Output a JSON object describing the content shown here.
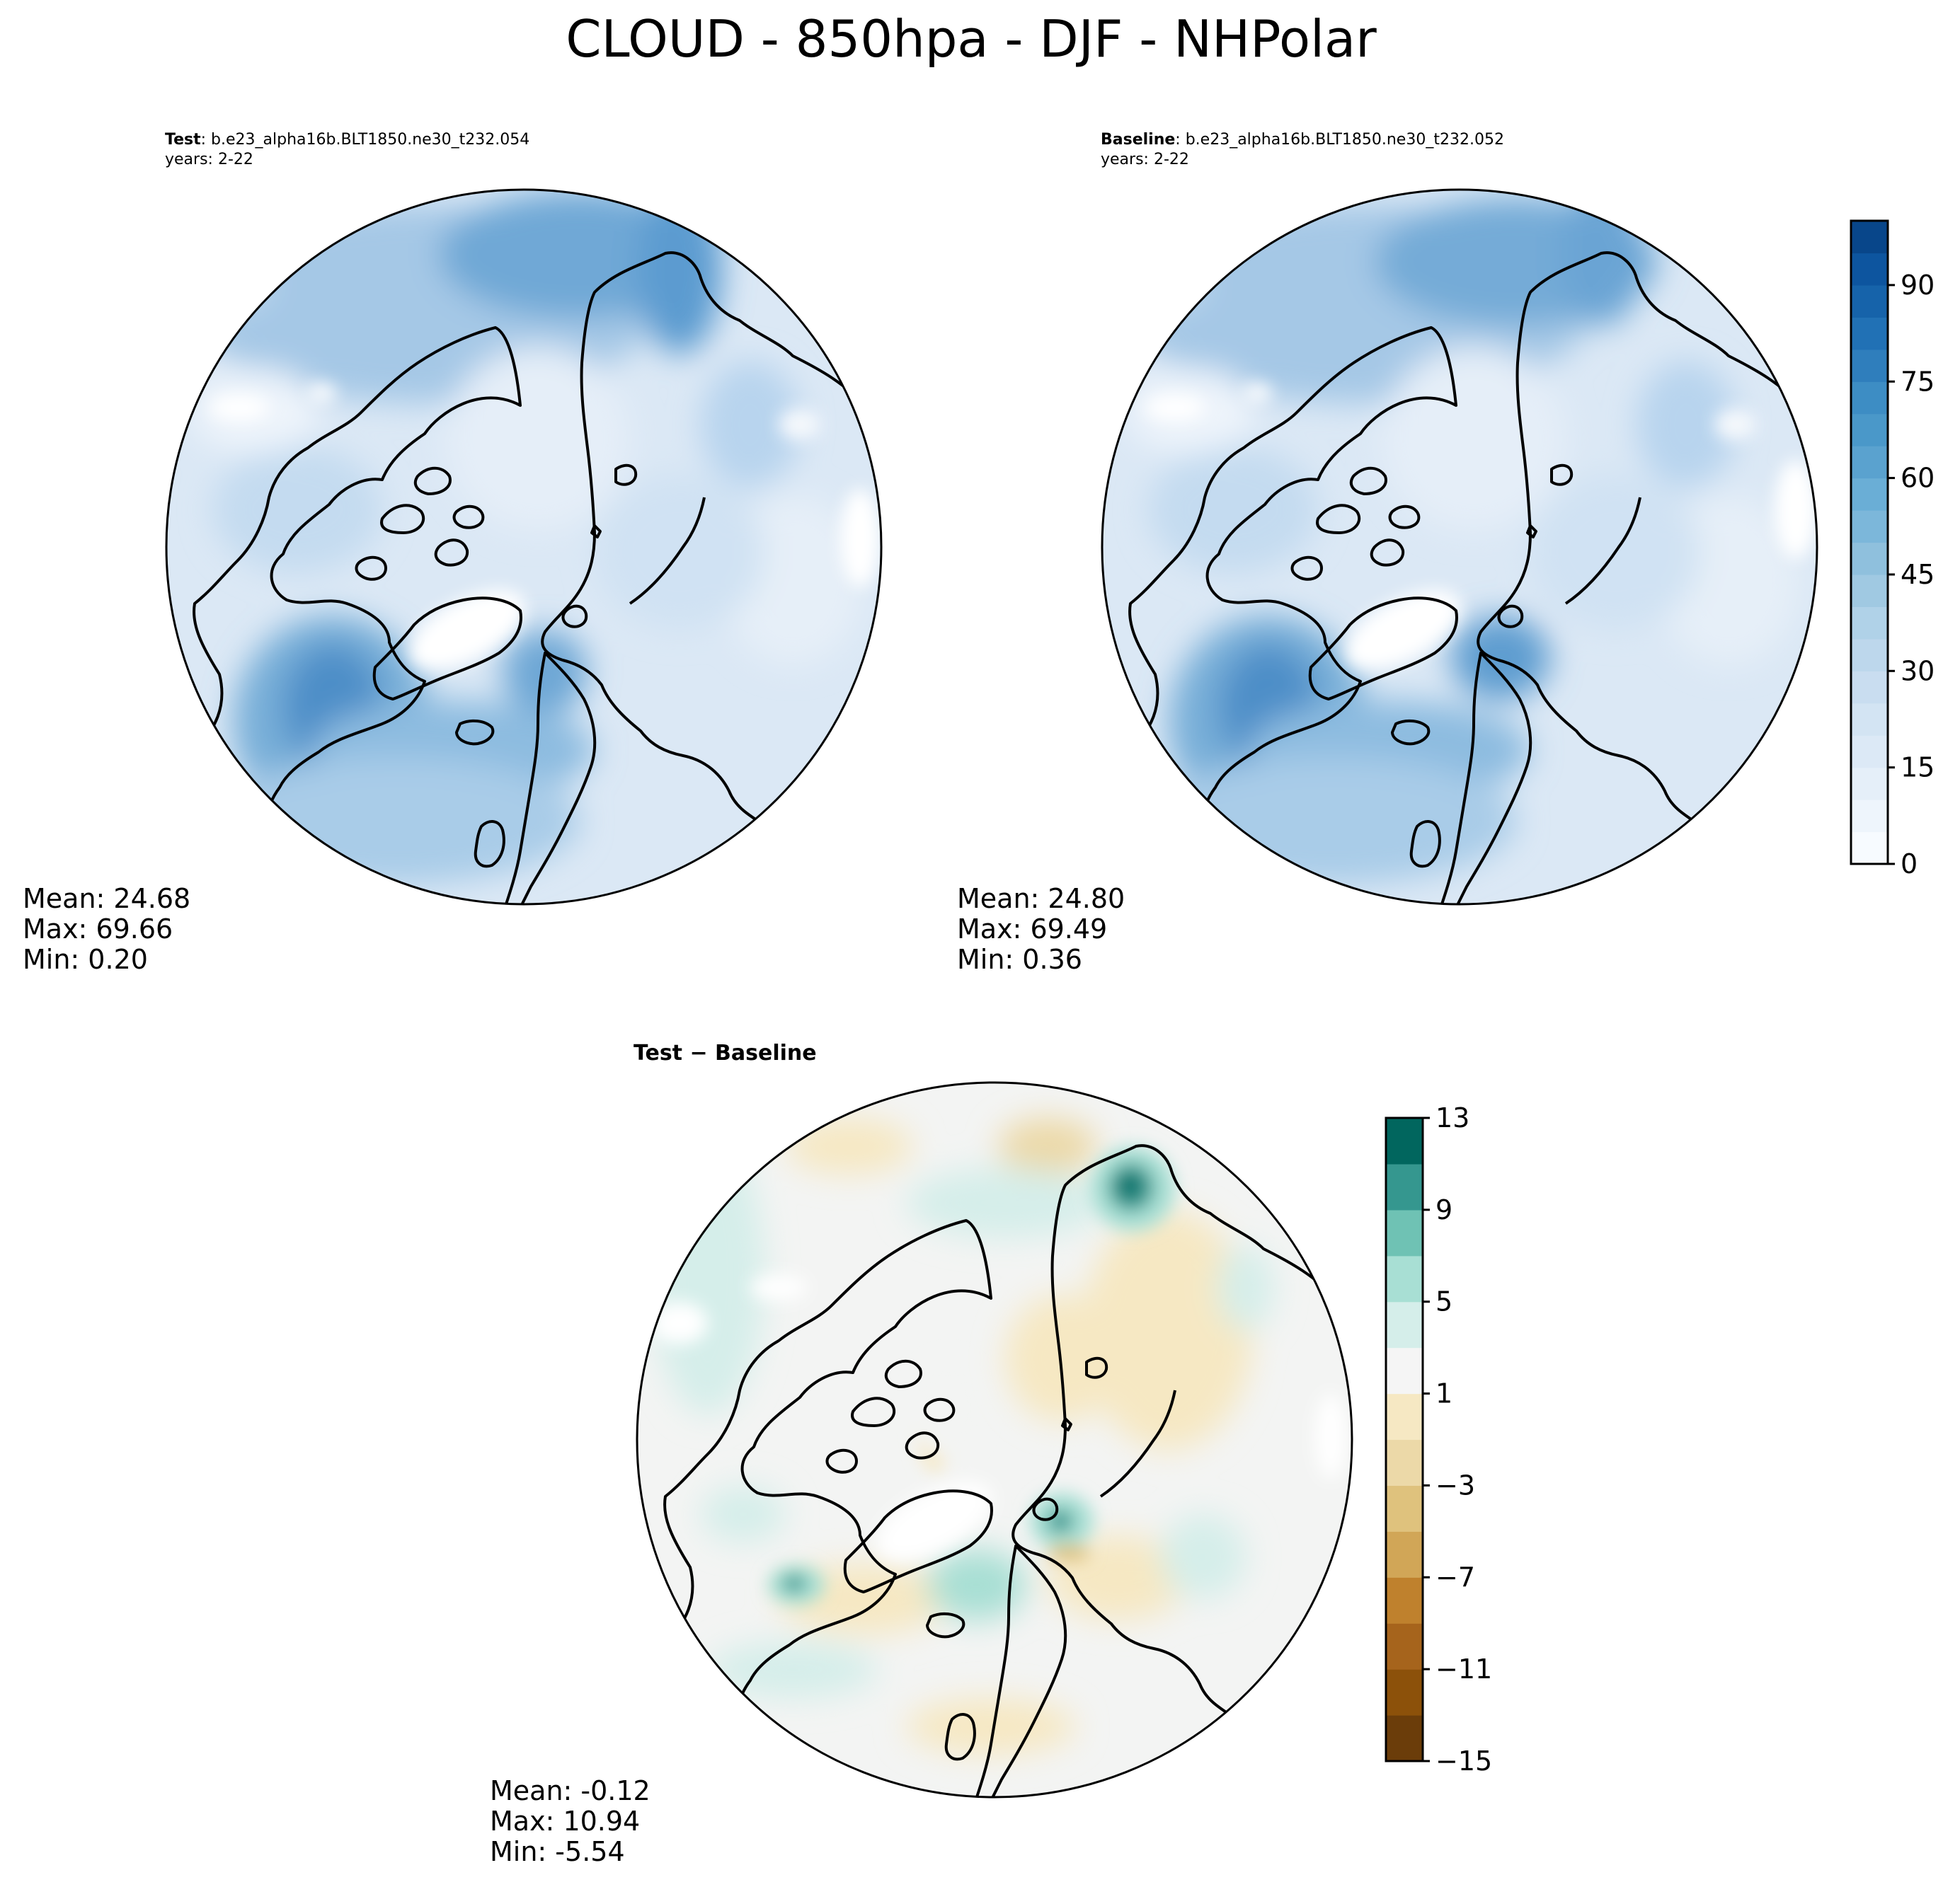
{
  "figure": {
    "title": "CLOUD - 850hpa - DJF - NHPolar"
  },
  "panels": [
    {
      "id": "test",
      "label_bold": "Test",
      "label_rest": ": b.e23_alpha16b.BLT1850.ne30_t232.054",
      "years": "years: 2-22",
      "stats": {
        "mean": "Mean: 24.68",
        "max": "Max: 69.66",
        "min": "Min:  0.20"
      }
    },
    {
      "id": "baseline",
      "label_bold": "Baseline",
      "label_rest": ": b.e23_alpha16b.BLT1850.ne30_t232.052",
      "years": "years: 2-22",
      "stats": {
        "mean": "Mean: 24.80",
        "max": "Max: 69.49",
        "min": "Min:  0.36"
      }
    },
    {
      "id": "diff",
      "label_bold": "Test − Baseline",
      "label_rest": "",
      "years": "",
      "stats": {
        "mean": "Mean: -0.12",
        "max": "Max: 10.94",
        "min": "Min: -5.54"
      }
    }
  ],
  "colorbars": {
    "main": {
      "range": [
        0,
        100
      ],
      "levels": 20,
      "ticks": [
        0,
        15,
        30,
        45,
        60,
        75,
        90
      ],
      "tick_labels": [
        "0",
        "15",
        "30",
        "45",
        "60",
        "75",
        "90"
      ],
      "colors": [
        "#f7fbff",
        "#eef5fc",
        "#e5eff9",
        "#dce9f6",
        "#d3e4f3",
        "#c9ddf0",
        "#bdd7ec",
        "#b0d2e8",
        "#a0c9e2",
        "#8fc0dd",
        "#7cb7da",
        "#6aaed6",
        "#5aa2cf",
        "#4a98c9",
        "#3d8dc4",
        "#2f7ebc",
        "#2171b5",
        "#1663aa",
        "#0d559f",
        "#08468a"
      ]
    },
    "diff": {
      "range": [
        -15,
        13
      ],
      "levels": 14,
      "ticks": [
        -15,
        -11,
        -7,
        -3,
        1,
        5,
        9,
        13
      ],
      "tick_labels": [
        "−15",
        "−11",
        "−7",
        "−3",
        "1",
        "5",
        "9",
        "13"
      ],
      "colors": [
        "#6b3d0a",
        "#8c510a",
        "#a6641c",
        "#bf812d",
        "#d1a657",
        "#dfc27d",
        "#ecd9a8",
        "#f6e8c3",
        "#f5f5f5",
        "#d5eeea",
        "#a8dfd4",
        "#6fc2b4",
        "#35978f",
        "#01665e"
      ]
    }
  }
}
